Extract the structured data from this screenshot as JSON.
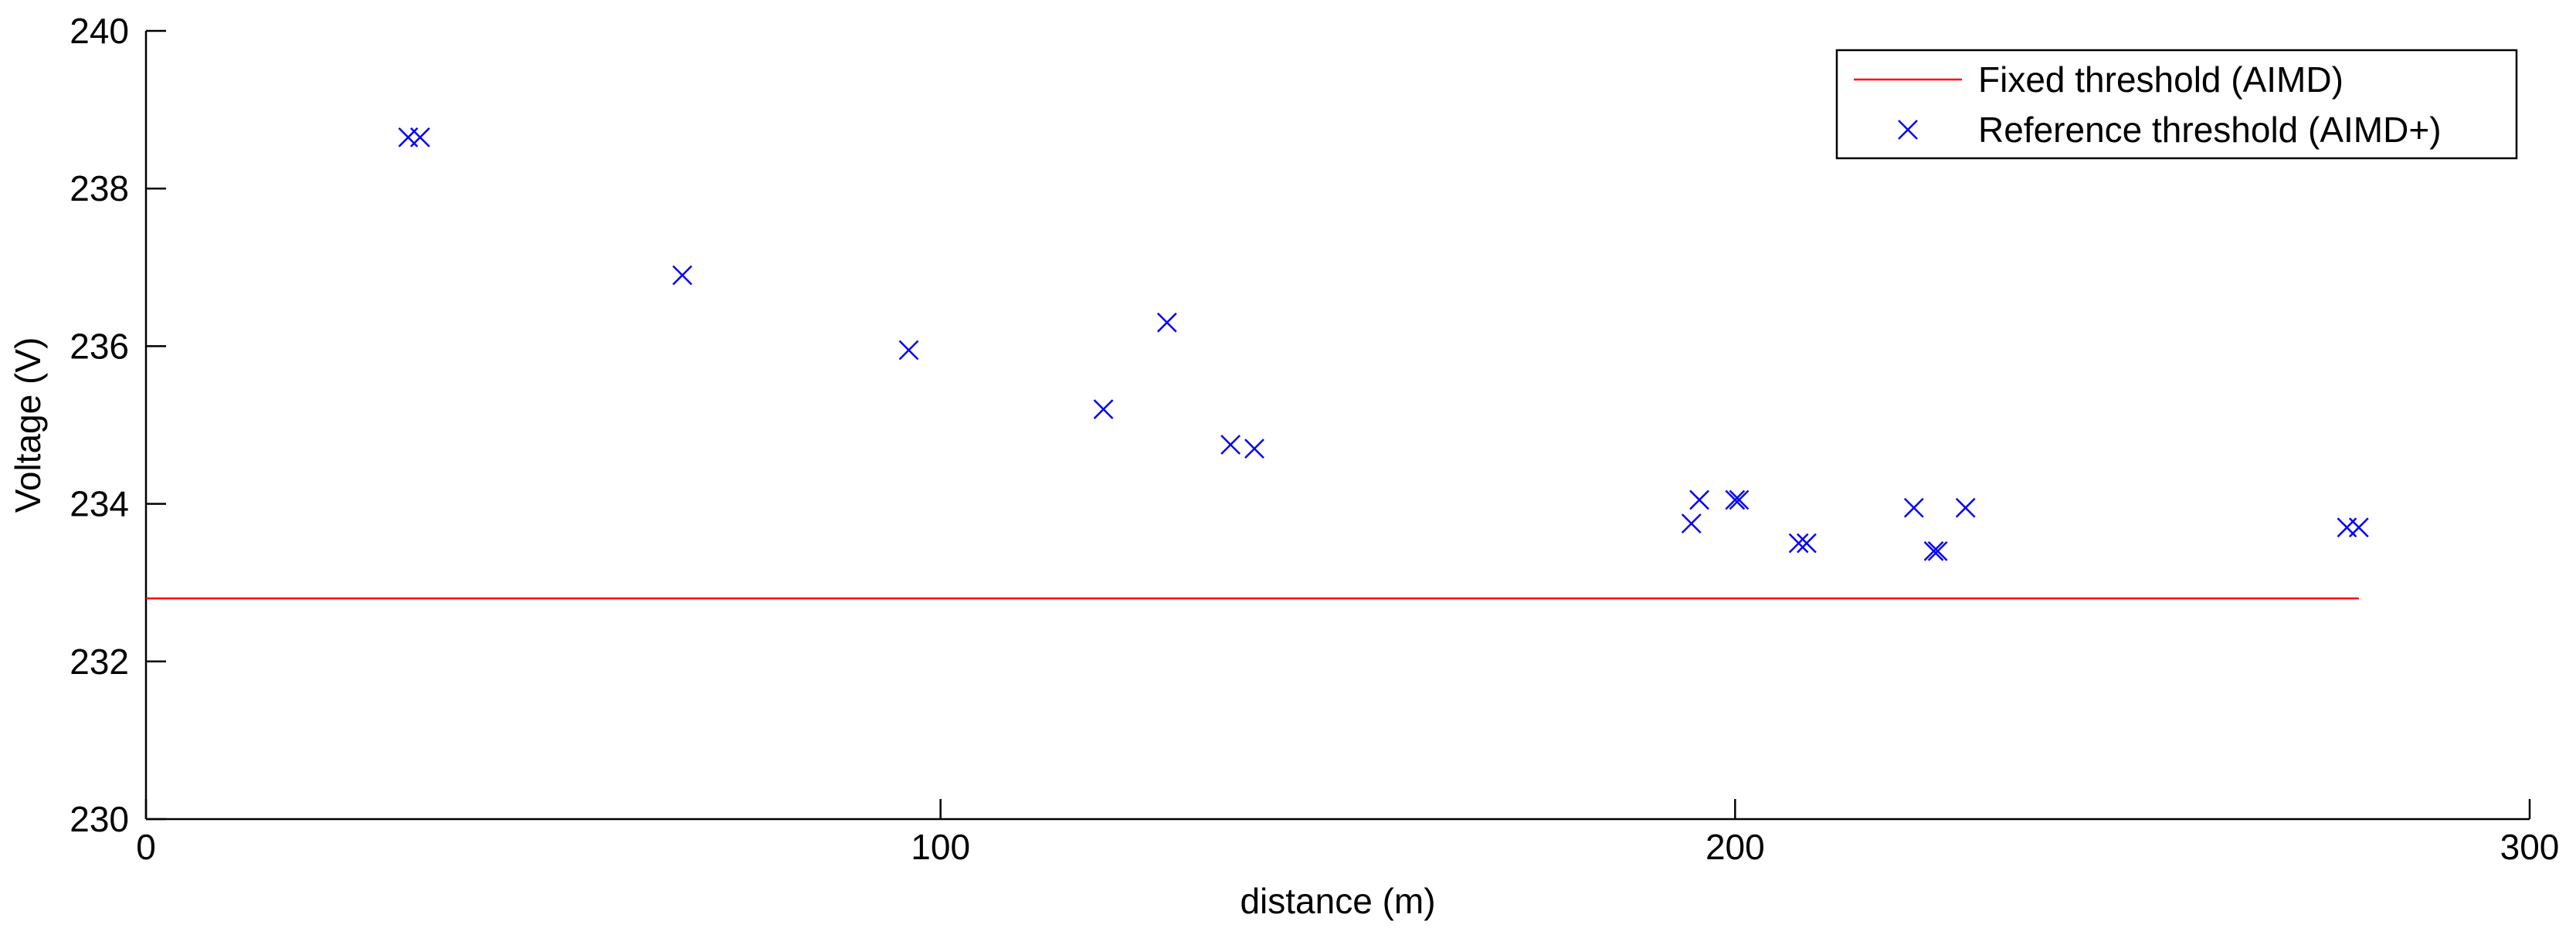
{
  "chart_data": {
    "type": "scatter",
    "xlabel": "distance (m)",
    "ylabel": "Voltage (V)",
    "xlim": [
      0,
      300
    ],
    "ylim": [
      230,
      240
    ],
    "xticks": [
      0,
      100,
      200,
      300
    ],
    "yticks": [
      230,
      232,
      234,
      236,
      238,
      240
    ],
    "grid": false,
    "legend_position": "top-right",
    "series": [
      {
        "name": "Fixed threshold (AIMD)",
        "kind": "line",
        "color": "#ff0000",
        "x": [
          0,
          278.5
        ],
        "y": [
          232.8,
          232.8
        ]
      },
      {
        "name": "Reference threshold (AIMD+)",
        "kind": "marker",
        "marker": "x",
        "color": "#0000ff",
        "x": [
          33.0,
          34.5,
          67.5,
          96.0,
          120.5,
          128.5,
          136.5,
          139.5,
          194.5,
          195.5,
          200.0,
          200.5,
          208.0,
          209.0,
          222.5,
          225.0,
          225.5,
          229.0,
          277.0,
          278.5
        ],
        "y": [
          238.65,
          238.65,
          236.9,
          235.95,
          235.2,
          236.3,
          234.75,
          234.7,
          233.75,
          234.05,
          234.05,
          234.05,
          233.5,
          233.5,
          233.95,
          233.4,
          233.4,
          233.95,
          233.7,
          233.7
        ]
      }
    ]
  }
}
